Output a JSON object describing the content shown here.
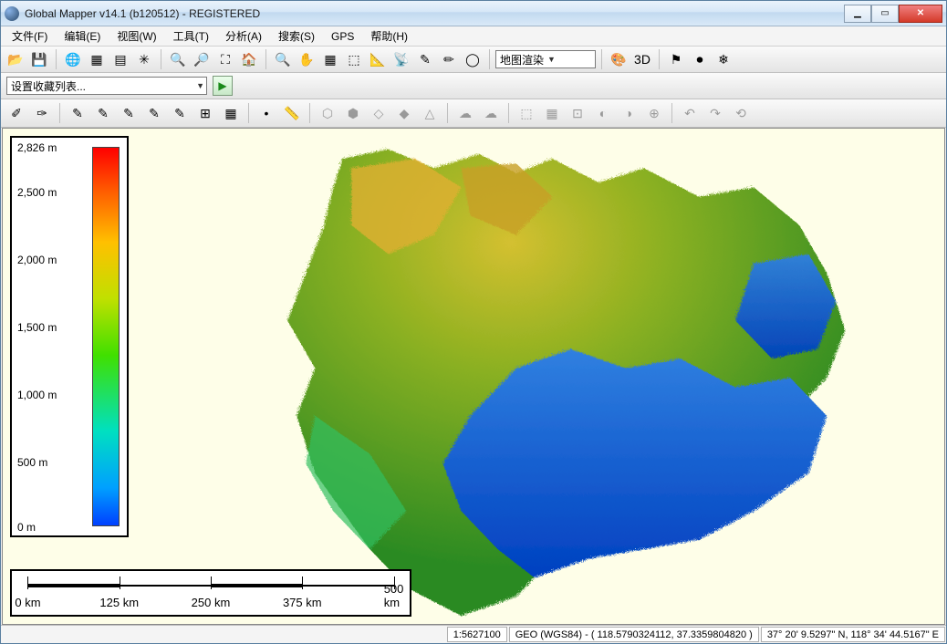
{
  "window": {
    "title": "Global Mapper v14.1 (b120512) - REGISTERED"
  },
  "menu": {
    "items": [
      "文件(F)",
      "编辑(E)",
      "视图(W)",
      "工具(T)",
      "分析(A)",
      "搜索(S)",
      "GPS",
      "帮助(H)"
    ]
  },
  "toolbar1": {
    "buttons": [
      "open",
      "save",
      "globe",
      "layers",
      "layers2",
      "config",
      "zoom-in",
      "zoom-out",
      "zoom-extent",
      "home",
      "ruler",
      "pan",
      "grid",
      "select",
      "draw",
      "antenna",
      "pencil",
      "pencil2",
      "circle"
    ],
    "combo_label": "地图渲染",
    "right_buttons": [
      "style",
      "3d",
      "flag",
      "record",
      "snow"
    ]
  },
  "toolbar2": {
    "combo_label": "设置收藏列表...",
    "play": "▶"
  },
  "toolbar3": {
    "enabled": [
      "dig1",
      "dig2",
      "pen1",
      "pen2",
      "pen3",
      "pen4",
      "pen5",
      "net",
      "grid",
      "point",
      "measure"
    ],
    "disabled": [
      "d1",
      "d2",
      "d3",
      "d4",
      "d5",
      "d6",
      "d7",
      "d8",
      "d9",
      "d10",
      "d11",
      "d12",
      "d13",
      "d14",
      "d15",
      "d16"
    ]
  },
  "legend": {
    "ticks": [
      {
        "label": "2,826 m",
        "pos": 0
      },
      {
        "label": "2,500 m",
        "pos": 49
      },
      {
        "label": "2,000 m",
        "pos": 123
      },
      {
        "label": "1,500 m",
        "pos": 197
      },
      {
        "label": "1,000 m",
        "pos": 271
      },
      {
        "label": "500 m",
        "pos": 345
      },
      {
        "label": "0 m",
        "pos": 416
      }
    ],
    "gradient_colors": [
      "#ff0000",
      "#ff6000",
      "#ffc000",
      "#c0e000",
      "#40e000",
      "#00e0c0",
      "#00a0ff",
      "#0040ff"
    ]
  },
  "scalebar": {
    "ticks": [
      "0 km",
      "125 km",
      "250 km",
      "375 km",
      "500 km"
    ],
    "tick_positions_pct": [
      4,
      27,
      50,
      73,
      96
    ]
  },
  "status": {
    "scale": "1:5627100",
    "proj": "GEO (WGS84) - ( 118.5790324112, 37.3359804820 )",
    "coord": "37° 20' 9.5297\" N, 118° 34' 44.5167\" E"
  },
  "viewport": {
    "background": "#fefee8"
  }
}
